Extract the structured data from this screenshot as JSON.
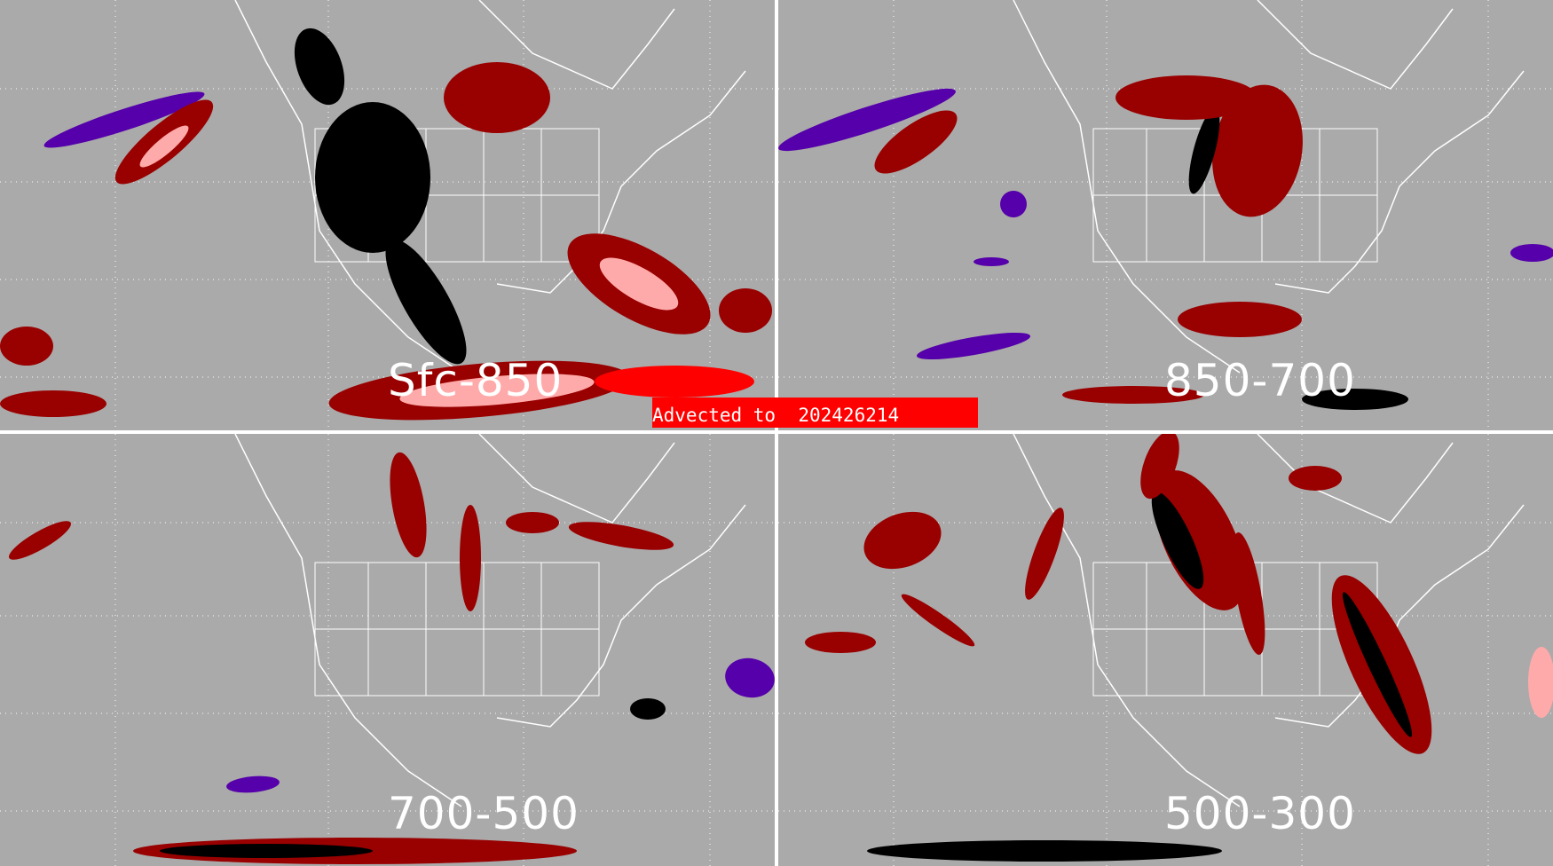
{
  "panels": [
    {
      "label": "Sfc-850"
    },
    {
      "label": "850-700"
    },
    {
      "label": "700-500"
    },
    {
      "label": "500-300"
    }
  ],
  "banner": {
    "text": "Advected to  202426214"
  },
  "colors": {
    "background": "#aaaaaa",
    "dark_red": "#990000",
    "pink": "#ffaaaa",
    "bright_red": "#ff0000",
    "black": "#000000",
    "purple": "#5500aa",
    "map_lines": "#ffffff",
    "banner": "#ff0000"
  }
}
